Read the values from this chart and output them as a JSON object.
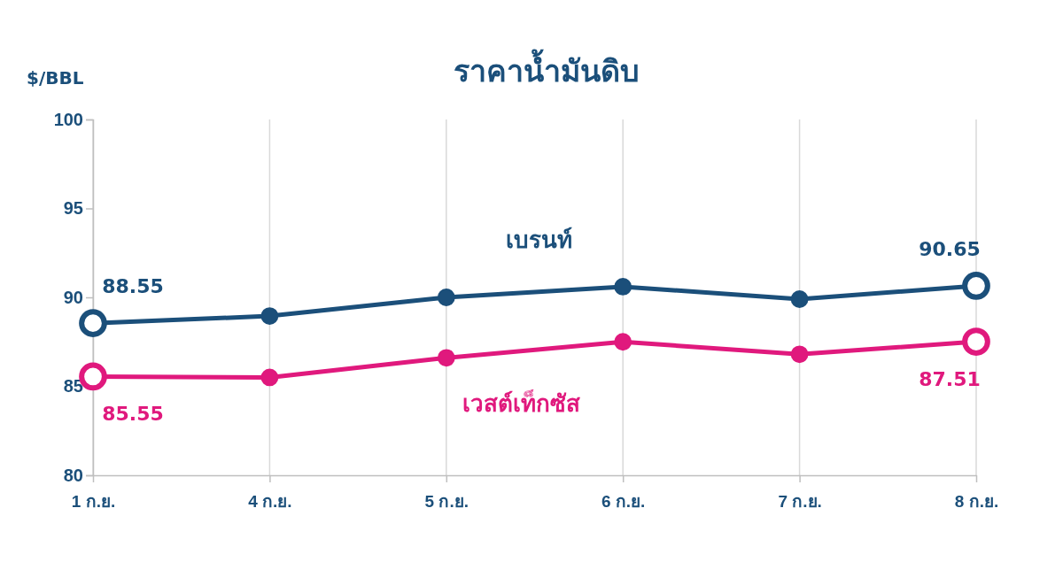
{
  "chart_data": {
    "type": "line",
    "title": "ราคาน้ำมันดิบ",
    "ylabel": "$/BBL",
    "categories": [
      "1 ก.ย.",
      "4 ก.ย.",
      "5 ก.ย.",
      "6 ก.ย.",
      "7 ก.ย.",
      "8 ก.ย."
    ],
    "series": [
      {
        "name": "เบรนท์",
        "color": "#1b4f7a",
        "values": [
          88.55,
          88.95,
          90.0,
          90.6,
          89.9,
          90.65
        ],
        "value_labels": [
          "88.55",
          null,
          null,
          null,
          null,
          "90.65"
        ]
      },
      {
        "name": "เวสต์เท็กซัส",
        "color": "#e0197d",
        "values": [
          85.55,
          85.5,
          86.6,
          87.5,
          86.8,
          87.51
        ],
        "value_labels": [
          "85.55",
          null,
          null,
          null,
          null,
          "87.51"
        ]
      }
    ],
    "ylim": [
      80,
      100
    ],
    "yticks": [
      80,
      85,
      90,
      95,
      100
    ],
    "grid": "x",
    "marker": "circle",
    "line_style": "solid"
  }
}
